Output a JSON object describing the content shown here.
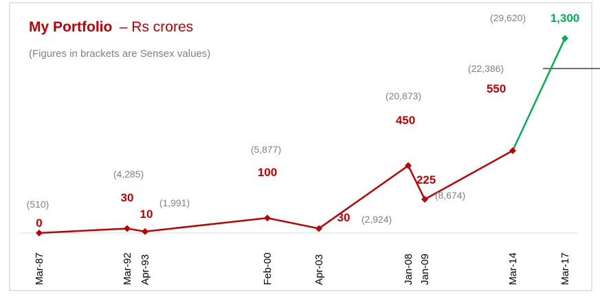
{
  "chart_data": {
    "type": "line",
    "title": "My Portfolio",
    "title_suffix": "– Rs crores",
    "subtitle": "(Figures in brackets are Sensex values)",
    "categories": [
      "Mar-87",
      "Mar-92",
      "Apr-93",
      "Feb-00",
      "Apr-03",
      "Jan-08",
      "Jan-09",
      "Mar-14",
      "Mar-17"
    ],
    "values": [
      0,
      30,
      10,
      100,
      30,
      450,
      225,
      550,
      1300
    ],
    "value_labels": [
      "0",
      "30",
      "10",
      "100",
      "30",
      "450",
      "225",
      "550",
      "1,300"
    ],
    "sensex_labels": [
      "(510)",
      "(4,285)",
      "(1,991)",
      "(5,877)",
      "(2,924)",
      "(20,873)",
      "(8,674)",
      "(22,386)",
      "(29,620)"
    ],
    "colors": {
      "line": "#c00000",
      "last_segment": "#00b050",
      "subtitle": "#7f7f7f"
    }
  }
}
